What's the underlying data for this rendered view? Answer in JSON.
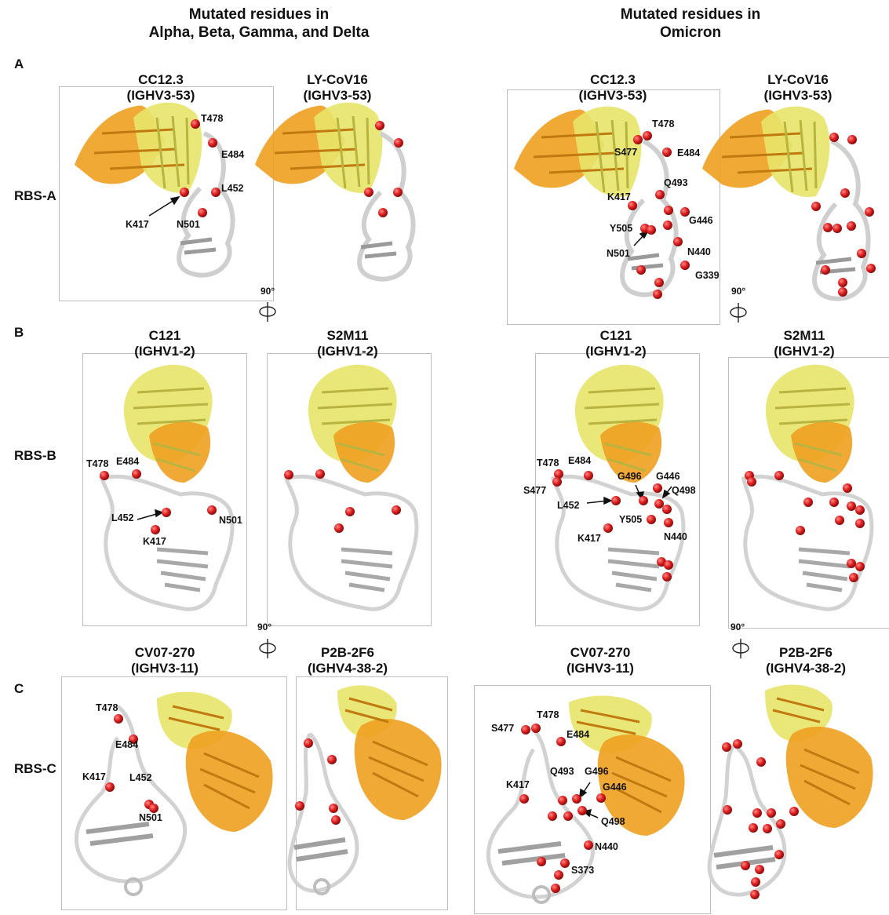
{
  "column_headers": {
    "left": [
      "Mutated residues in",
      "Alpha, Beta, Gamma, and Delta"
    ],
    "right": [
      "Mutated residues in",
      "Omicron"
    ]
  },
  "panels": {
    "A": {
      "letter": "A",
      "row_label": "RBS-A",
      "antibodies": [
        {
          "name": "CC12.3",
          "gene": "(IGHV3-53)"
        },
        {
          "name": "LY-CoV16",
          "gene": "(IGHV3-53)"
        }
      ]
    },
    "B": {
      "letter": "B",
      "row_label": "RBS-B",
      "antibodies": [
        {
          "name": "C121",
          "gene": "(IGHV1-2)"
        },
        {
          "name": "S2M11",
          "gene": "(IGHV1-2)"
        }
      ]
    },
    "C": {
      "letter": "C",
      "row_label": "RBS-C",
      "antibodies": [
        {
          "name": "CV07-270",
          "gene": "(IGHV3-11)"
        },
        {
          "name": "P2B-2F6",
          "gene": "(IGHV4-38-2)"
        }
      ]
    }
  },
  "rotation_label": "90°",
  "residue_labels": {
    "A_left": [
      "T478",
      "E484",
      "L452",
      "K417",
      "N501"
    ],
    "A_right": [
      "T478",
      "S477",
      "E484",
      "Q493",
      "K417",
      "G446",
      "Y505",
      "N501",
      "N440",
      "G339"
    ],
    "B_left": [
      "T478",
      "E484",
      "L452",
      "K417",
      "N501"
    ],
    "B_right": [
      "T478",
      "E484",
      "S477",
      "G496",
      "G446",
      "Q498",
      "L452",
      "Y505",
      "K417",
      "N440"
    ],
    "C_left": [
      "T478",
      "E484",
      "K417",
      "L452",
      "N501"
    ],
    "C_right": [
      "S477",
      "T478",
      "E484",
      "Q493",
      "G496",
      "K417",
      "G446",
      "Q498",
      "N440",
      "S373"
    ]
  },
  "colors": {
    "heavy_chain": "#F0A020",
    "light_chain": "#E8E46A",
    "rbd": "#C8C8C8",
    "mutated_residue": "#E02020"
  }
}
